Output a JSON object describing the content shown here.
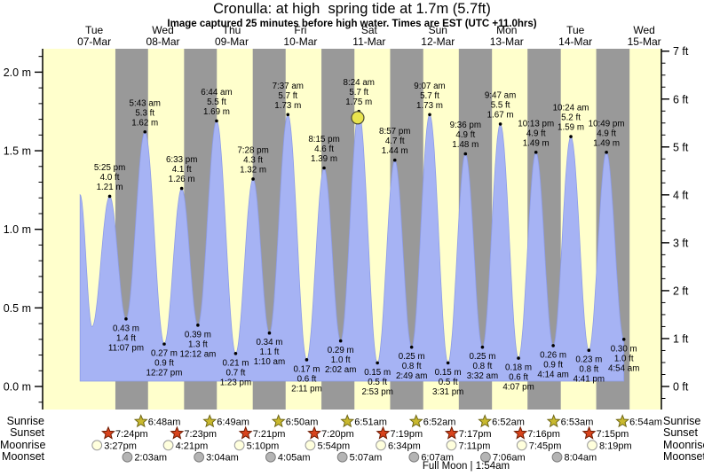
{
  "title": "Cronulla: at high  spring tide at 1.7m (5.7ft)",
  "subtitle": "Image captured 25 minutes before high water. Times are EST (UTC +11.0hrs)",
  "chart_data": {
    "type": "area",
    "unit_left": "m",
    "unit_right": "ft",
    "ylim_m": [
      -0.15,
      2.15
    ],
    "grid": false,
    "days": [
      {
        "weekday": "Tue",
        "date": "07-Mar"
      },
      {
        "weekday": "Wed",
        "date": "08-Mar"
      },
      {
        "weekday": "Thu",
        "date": "09-Mar"
      },
      {
        "weekday": "Fri",
        "date": "10-Mar"
      },
      {
        "weekday": "Sat",
        "date": "11-Mar"
      },
      {
        "weekday": "Sun",
        "date": "12-Mar"
      },
      {
        "weekday": "Mon",
        "date": "13-Mar"
      },
      {
        "weekday": "Tue",
        "date": "14-Mar"
      },
      {
        "weekday": "Wed",
        "date": "15-Mar"
      }
    ],
    "left_axis_labels": [
      {
        "text": "2.0 m",
        "m": 2.0
      },
      {
        "text": "1.5 m",
        "m": 1.5
      },
      {
        "text": "1.0 m",
        "m": 1.0
      },
      {
        "text": "0.5 m",
        "m": 0.5
      },
      {
        "text": "0.0 m",
        "m": 0.0
      }
    ],
    "right_axis_labels": [
      {
        "text": "7 ft",
        "ft": 7
      },
      {
        "text": "6 ft",
        "ft": 6
      },
      {
        "text": "5 ft",
        "ft": 5
      },
      {
        "text": "4 ft",
        "ft": 4
      },
      {
        "text": "3 ft",
        "ft": 3
      },
      {
        "text": "2 ft",
        "ft": 2
      },
      {
        "text": "1 ft",
        "ft": 1
      },
      {
        "text": "0 ft",
        "ft": 0
      }
    ],
    "tide_events": [
      {
        "day": 0,
        "time": "7:05 am",
        "m": 1.22,
        "kind": "high",
        "lines": []
      },
      {
        "day": 0,
        "time": "11:15 am",
        "m": 0.38,
        "kind": "low",
        "lines": []
      },
      {
        "day": 0,
        "time": "5:25 pm",
        "m": 1.21,
        "kind": "high",
        "lines": [
          "5:25 pm",
          "4.0 ft",
          "1.21 m"
        ]
      },
      {
        "day": 0,
        "time": "11:07 pm",
        "m": 0.43,
        "kind": "low",
        "lines": [
          "0.43 m",
          "1.4 ft",
          "11:07 pm"
        ]
      },
      {
        "day": 1,
        "time": "5:43 am",
        "m": 1.62,
        "kind": "high",
        "lines": [
          "5:43 am",
          "5.3 ft",
          "1.62 m"
        ]
      },
      {
        "day": 1,
        "time": "12:27 pm",
        "m": 0.27,
        "kind": "low",
        "lines": [
          "0.27 m",
          "0.9 ft",
          "12:27 pm"
        ]
      },
      {
        "day": 1,
        "time": "6:33 pm",
        "m": 1.26,
        "kind": "high",
        "lines": [
          "6:33 pm",
          "4.1 ft",
          "1.26 m"
        ]
      },
      {
        "day": 2,
        "time": "12:12 am",
        "m": 0.39,
        "kind": "low",
        "lines": [
          "0.39 m",
          "1.3 ft",
          "12:12 am"
        ]
      },
      {
        "day": 2,
        "time": "6:44 am",
        "m": 1.69,
        "kind": "high",
        "lines": [
          "6:44 am",
          "5.5 ft",
          "1.69 m"
        ]
      },
      {
        "day": 2,
        "time": "1:23 pm",
        "m": 0.21,
        "kind": "low",
        "lines": [
          "0.21 m",
          "0.7 ft",
          "1:23 pm"
        ]
      },
      {
        "day": 2,
        "time": "7:28 pm",
        "m": 1.32,
        "kind": "high",
        "lines": [
          "7:28 pm",
          "4.3 ft",
          "1.32 m"
        ]
      },
      {
        "day": 3,
        "time": "1:10 am",
        "m": 0.34,
        "kind": "low",
        "lines": [
          "0.34 m",
          "1.1 ft",
          "1:10 am"
        ]
      },
      {
        "day": 3,
        "time": "7:37 am",
        "m": 1.73,
        "kind": "high",
        "lines": [
          "7:37 am",
          "5.7 ft",
          "1.73 m"
        ]
      },
      {
        "day": 3,
        "time": "2:11 pm",
        "m": 0.17,
        "kind": "low",
        "lines": [
          "0.17 m",
          "0.6 ft",
          "2:11 pm"
        ]
      },
      {
        "day": 3,
        "time": "8:15 pm",
        "m": 1.39,
        "kind": "high",
        "lines": [
          "8:15 pm",
          "4.6 ft",
          "1.39 m"
        ]
      },
      {
        "day": 4,
        "time": "2:02 am",
        "m": 0.29,
        "kind": "low",
        "lines": [
          "0.29 m",
          "1.0 ft",
          "2:02 am"
        ]
      },
      {
        "day": 4,
        "time": "8:24 am",
        "m": 1.75,
        "kind": "high",
        "lines": [
          "8:24 am",
          "5.7 ft",
          "1.75 m"
        ]
      },
      {
        "day": 4,
        "time": "2:53 pm",
        "m": 0.15,
        "kind": "low",
        "lines": [
          "0.15 m",
          "0.5 ft",
          "2:53 pm"
        ]
      },
      {
        "day": 4,
        "time": "8:57 pm",
        "m": 1.44,
        "kind": "high",
        "lines": [
          "8:57 pm",
          "4.7 ft",
          "1.44 m"
        ]
      },
      {
        "day": 5,
        "time": "2:49 am",
        "m": 0.25,
        "kind": "low",
        "lines": [
          "0.25 m",
          "0.8 ft",
          "2:49 am"
        ]
      },
      {
        "day": 5,
        "time": "9:07 am",
        "m": 1.73,
        "kind": "high",
        "lines": [
          "9:07 am",
          "5.7 ft",
          "1.73 m"
        ]
      },
      {
        "day": 5,
        "time": "3:31 pm",
        "m": 0.15,
        "kind": "low",
        "lines": [
          "0.15 m",
          "0.5 ft",
          "3:31 pm"
        ]
      },
      {
        "day": 5,
        "time": "9:36 pm",
        "m": 1.48,
        "kind": "high",
        "lines": [
          "9:36 pm",
          "4.9 ft",
          "1.48 m"
        ]
      },
      {
        "day": 6,
        "time": "3:32 am",
        "m": 0.25,
        "kind": "low",
        "lines": [
          "0.25 m",
          "0.8 ft",
          "3:32 am"
        ]
      },
      {
        "day": 6,
        "time": "9:47 am",
        "m": 1.67,
        "kind": "high",
        "lines": [
          "9:47 am",
          "5.5 ft",
          "1.67 m"
        ]
      },
      {
        "day": 6,
        "time": "4:07 pm",
        "m": 0.18,
        "kind": "low",
        "lines": [
          "0.18 m",
          "0.6 ft",
          "4:07 pm"
        ]
      },
      {
        "day": 6,
        "time": "10:13 pm",
        "m": 1.49,
        "kind": "high",
        "lines": [
          "10:13 pm",
          "4.9 ft",
          "1.49 m"
        ]
      },
      {
        "day": 7,
        "time": "4:14 am",
        "m": 0.26,
        "kind": "low",
        "lines": [
          "0.26 m",
          "0.9 ft",
          "4:14 am"
        ]
      },
      {
        "day": 7,
        "time": "10:24 am",
        "m": 1.59,
        "kind": "high",
        "lines": [
          "10:24 am",
          "5.2 ft",
          "1.59 m"
        ]
      },
      {
        "day": 7,
        "time": "4:41 pm",
        "m": 0.23,
        "kind": "low",
        "lines": [
          "0.23 m",
          "0.8 ft",
          "4:41 pm"
        ]
      },
      {
        "day": 7,
        "time": "10:49 pm",
        "m": 1.49,
        "kind": "high",
        "lines": [
          "10:49 pm",
          "4.9 ft",
          "1.49 m"
        ]
      },
      {
        "day": 8,
        "time": "4:54 am",
        "m": 0.3,
        "kind": "low",
        "lines": [
          "0.30 m",
          "1.0 ft",
          "4:54 am"
        ]
      }
    ],
    "current_marker": {
      "day": 4,
      "time": "8:00 am",
      "m": 1.71
    },
    "colors": {
      "day_band": "#ffffcc",
      "night_band": "#999999",
      "tide_fill": "#a6b3f4",
      "tide_stroke": "#8d9ce8",
      "day_label_red": "#f20000",
      "marker_fill": "#e9e44e",
      "marker_stroke": "#4a4a33",
      "sunrise_icon": "#c9b92e",
      "sunrise_icon_stroke": "#6f6716",
      "sunset_icon": "#d8431c",
      "sunset_icon_stroke": "#6e1a00",
      "moonrise_icon": "#ffffdd",
      "moonrise_icon_stroke": "#999999",
      "moonset_icon": "#b4b4b4",
      "moonset_icon_stroke": "#7f7f7f"
    }
  },
  "astro": {
    "row_labels": [
      "Sunrise",
      "Sunset",
      "Moonrise",
      "Moonset"
    ],
    "sunrise": [
      {
        "day": 1,
        "time": "6:48am"
      },
      {
        "day": 2,
        "time": "6:49am"
      },
      {
        "day": 3,
        "time": "6:50am"
      },
      {
        "day": 4,
        "time": "6:51am"
      },
      {
        "day": 5,
        "time": "6:52am"
      },
      {
        "day": 6,
        "time": "6:52am"
      },
      {
        "day": 7,
        "time": "6:53am"
      },
      {
        "day": 8,
        "time": "6:54am"
      }
    ],
    "sunset": [
      {
        "day": 0,
        "time": "7:24pm"
      },
      {
        "day": 1,
        "time": "7:23pm"
      },
      {
        "day": 2,
        "time": "7:21pm"
      },
      {
        "day": 3,
        "time": "7:20pm"
      },
      {
        "day": 4,
        "time": "7:19pm"
      },
      {
        "day": 5,
        "time": "7:17pm"
      },
      {
        "day": 6,
        "time": "7:16pm"
      },
      {
        "day": 7,
        "time": "7:15pm"
      }
    ],
    "moonrise": [
      {
        "day": 0,
        "time": "3:27pm"
      },
      {
        "day": 1,
        "time": "4:21pm"
      },
      {
        "day": 2,
        "time": "5:10pm"
      },
      {
        "day": 3,
        "time": "5:54pm"
      },
      {
        "day": 4,
        "time": "6:34pm"
      },
      {
        "day": 5,
        "time": "7:11pm"
      },
      {
        "day": 6,
        "time": "7:45pm"
      },
      {
        "day": 7,
        "time": "8:19pm"
      }
    ],
    "moonset": [
      {
        "day": 1,
        "time": "2:03am"
      },
      {
        "day": 2,
        "time": "3:04am"
      },
      {
        "day": 3,
        "time": "4:05am"
      },
      {
        "day": 4,
        "time": "5:07am"
      },
      {
        "day": 5,
        "time": "6:07am"
      },
      {
        "day": 6,
        "time": "7:06am"
      },
      {
        "day": 7,
        "time": "8:04am"
      }
    ],
    "footnote": "Full Moon | 1:54am"
  }
}
